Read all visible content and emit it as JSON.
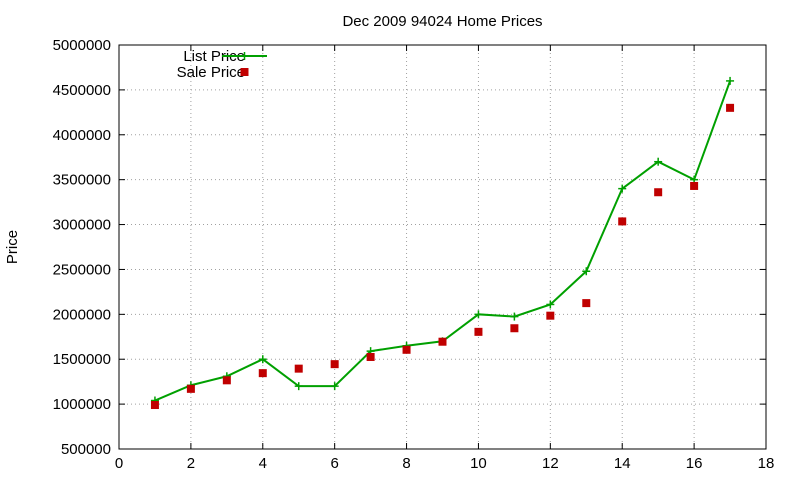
{
  "chart_data": {
    "type": "line",
    "title": "Dec 2009 94024 Home Prices",
    "xlabel": "",
    "ylabel": "Price",
    "xlim": [
      0,
      18
    ],
    "ylim": [
      500000,
      5000000
    ],
    "x_ticks": [
      0,
      2,
      4,
      6,
      8,
      10,
      12,
      14,
      16,
      18
    ],
    "y_ticks": [
      500000,
      1000000,
      1500000,
      2000000,
      2500000,
      3000000,
      3500000,
      4000000,
      4500000,
      5000000
    ],
    "grid": true,
    "legend_position": "top-left",
    "x": [
      1,
      2,
      3,
      4,
      5,
      6,
      7,
      8,
      9,
      10,
      11,
      12,
      13,
      14,
      15,
      16,
      17
    ],
    "series": [
      {
        "name": "List Price",
        "style": "line-with-plus-markers",
        "color": "#00a000",
        "values": [
          1040000,
          1210000,
          1310000,
          1500000,
          1200000,
          1200000,
          1590000,
          1650000,
          1700000,
          2000000,
          1975000,
          2110000,
          2480000,
          3400000,
          3700000,
          3500000,
          4600000
        ]
      },
      {
        "name": "Sale Price",
        "style": "square-markers",
        "color": "#c00000",
        "values": [
          990000,
          1170000,
          1265000,
          1345000,
          1395000,
          1445000,
          1525000,
          1605000,
          1695000,
          1805000,
          1845000,
          1985000,
          2125000,
          3035000,
          3360000,
          3430000,
          4300000
        ]
      }
    ]
  }
}
